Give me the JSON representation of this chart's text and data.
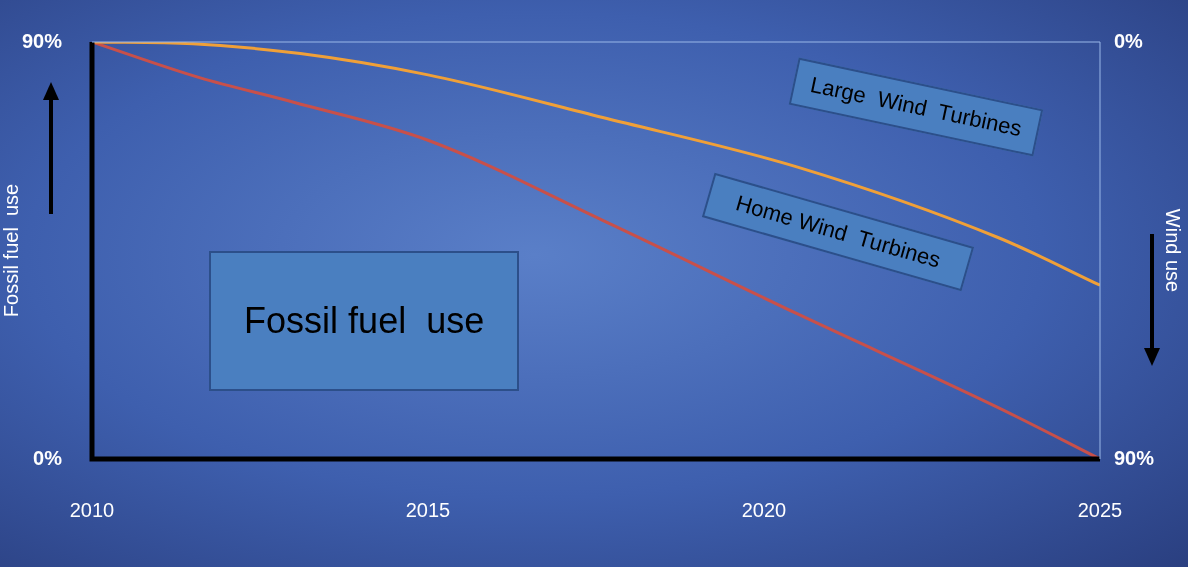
{
  "chart_data": {
    "type": "line",
    "ylabel": "Fossil fuel  use",
    "y2label": "Wind use",
    "annotations": [
      "Fossil fuel  use"
    ],
    "xlim": [
      2010,
      2025
    ],
    "xticks": [
      2010,
      2015,
      2020,
      2025
    ],
    "ylim": [
      0,
      90
    ],
    "yticks": [
      {
        "value": 0,
        "label": "0%"
      },
      {
        "value": 90,
        "label": "90%"
      }
    ],
    "y2lim": [
      90,
      0
    ],
    "y2ticks": [
      {
        "value": 0,
        "label": "0%"
      },
      {
        "value": 90,
        "label": "90%"
      }
    ],
    "grid": false,
    "legend": false,
    "series": [
      {
        "name": "Large  Wind  Turbines",
        "color": "#f0a038",
        "x": [
          2010,
          2011.5,
          2013.1,
          2015,
          2017.6,
          2020.5,
          2023.5,
          2025
        ],
        "values": [
          90,
          89.6,
          87.5,
          82.9,
          73.7,
          63,
          47.7,
          37.5
        ]
      },
      {
        "name": "Home Wind  Turbines",
        "color": "#c8504a",
        "x": [
          2010,
          2011.6,
          2013,
          2015,
          2017.6,
          2020.5,
          2023.5,
          2025
        ],
        "values": [
          90,
          82.3,
          77,
          68.8,
          51.5,
          31.3,
          11,
          0
        ]
      }
    ]
  }
}
